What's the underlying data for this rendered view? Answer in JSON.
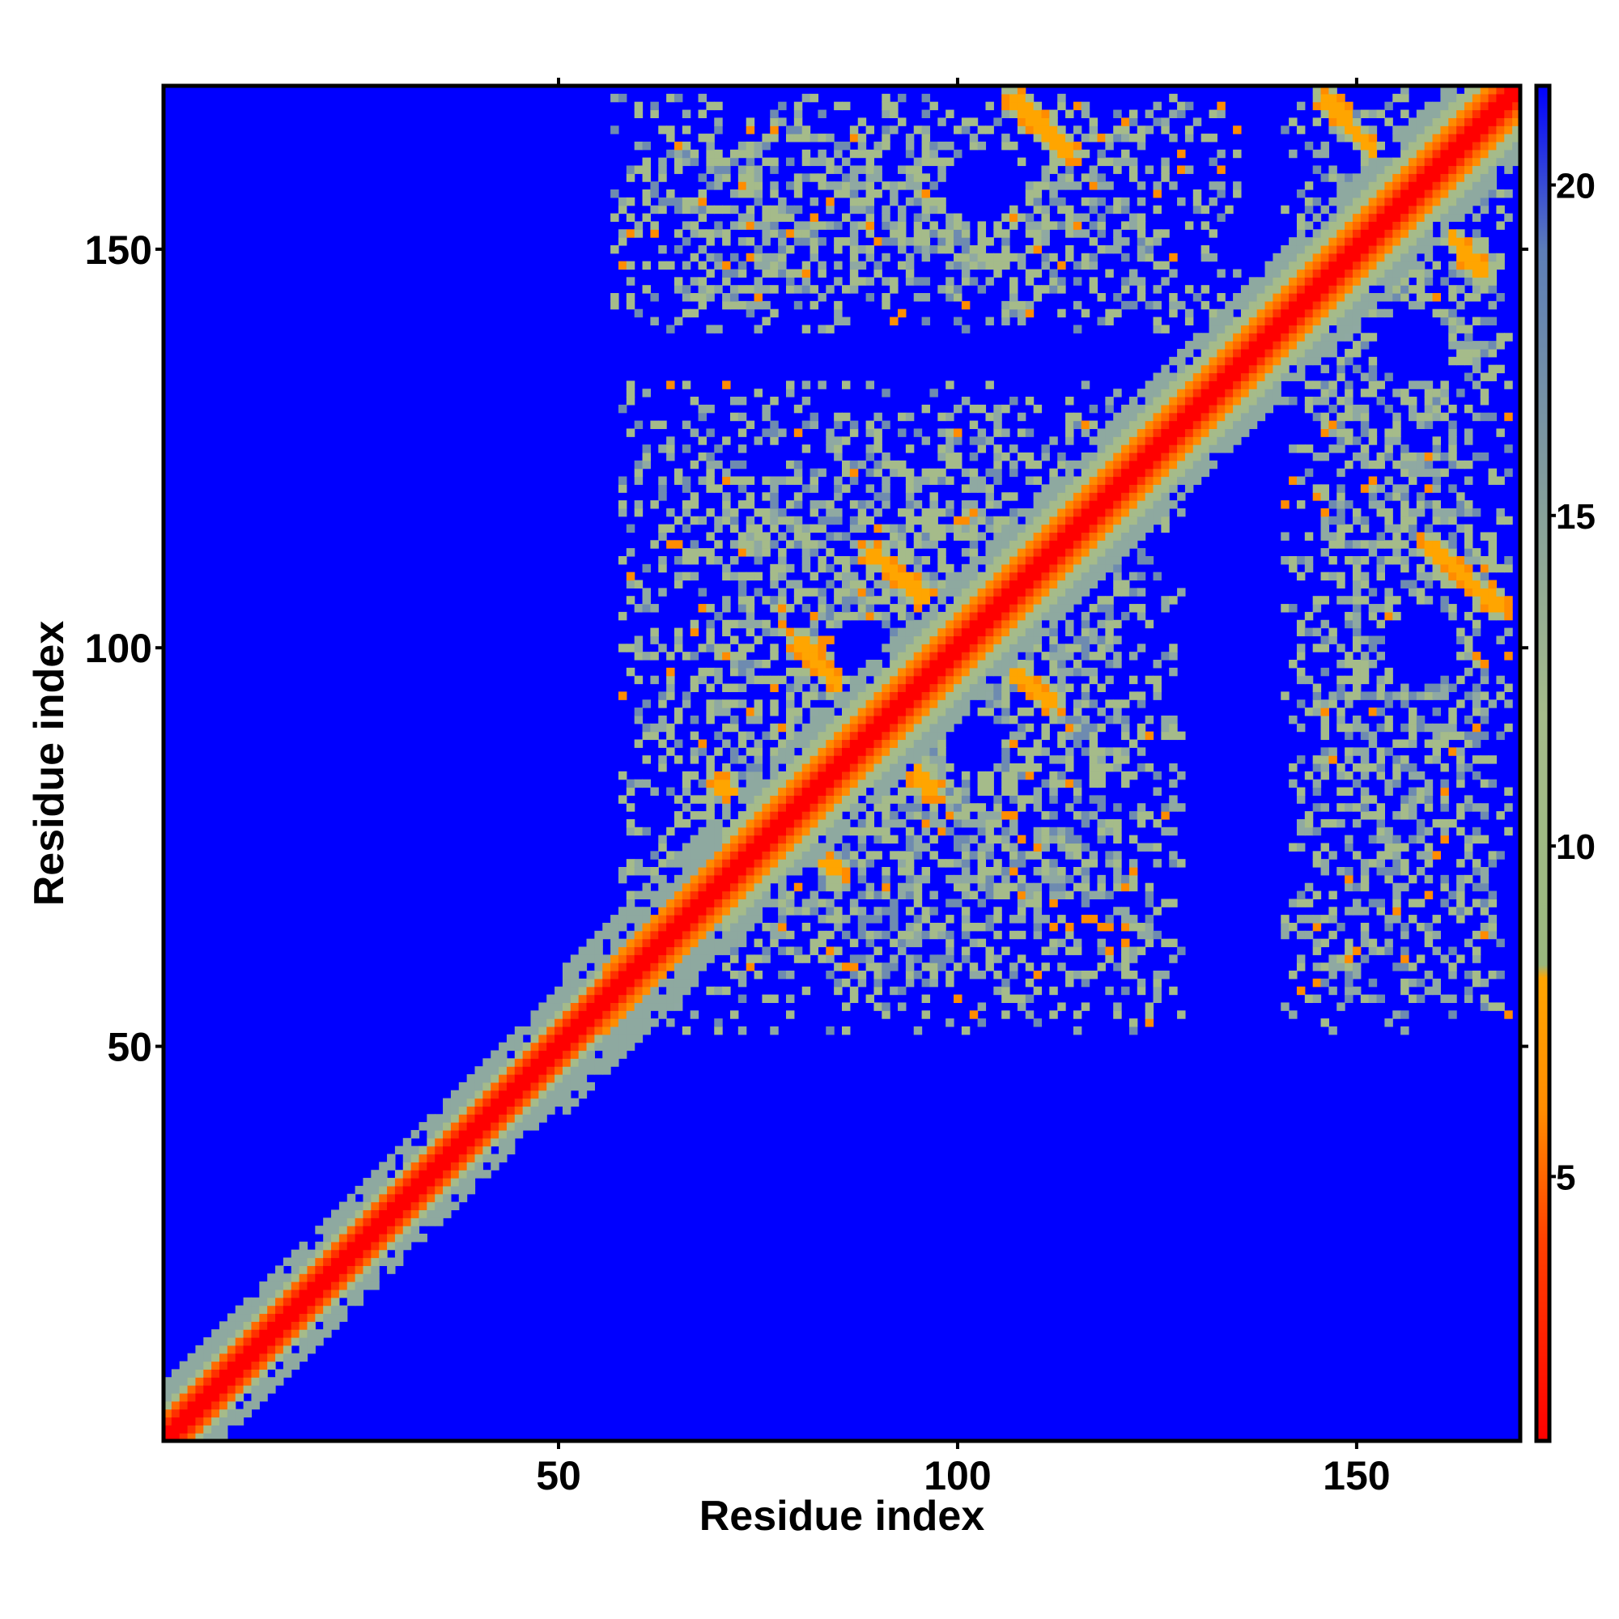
{
  "chart_data": {
    "type": "heatmap",
    "title": "",
    "xlabel": "Residue index",
    "ylabel": "Residue index",
    "n_residues": 170,
    "xlim": [
      1,
      170
    ],
    "ylim": [
      1,
      170
    ],
    "x_ticks": [
      50,
      100,
      150
    ],
    "y_ticks": [
      50,
      100,
      150
    ],
    "colorbar": {
      "range": [
        1,
        21.5
      ],
      "ticks": [
        5,
        10,
        15,
        20
      ],
      "stops": [
        {
          "value": 1,
          "color": "#ff0000"
        },
        {
          "value": 4,
          "color": "#ff4000"
        },
        {
          "value": 6,
          "color": "#ff8c00"
        },
        {
          "value": 8,
          "color": "#ffa500"
        },
        {
          "value": 8.2,
          "color": "#9ab87e"
        },
        {
          "value": 12,
          "color": "#a5bb8a"
        },
        {
          "value": 16,
          "color": "#7d98a0"
        },
        {
          "value": 19,
          "color": "#5d7eb8"
        },
        {
          "value": 21.5,
          "color": "#0000ff"
        }
      ]
    },
    "background_value": 21.5,
    "colors": {
      "far": "#0000ff",
      "diagonal": "#ff0000",
      "near": "#ffa500",
      "mid": "#a5bb8a"
    },
    "features": {
      "diagonal_band_width": 4,
      "contact_blocks": [
        {
          "x": [
            58,
            128
          ],
          "y": [
            52,
            133
          ],
          "density": 0.62
        },
        {
          "x": [
            57,
            135
          ],
          "y": [
            140,
            169
          ],
          "density": 0.58
        },
        {
          "x": [
            141,
            169
          ],
          "y": [
            52,
            170
          ],
          "density": 0.56
        }
      ],
      "antiparallel_contacts": [
        {
          "x1": 70,
          "y1": 83,
          "x2": 85,
          "y2": 72
        },
        {
          "x1": 80,
          "y1": 101,
          "x2": 97,
          "y2": 82
        },
        {
          "x1": 89,
          "y1": 112,
          "x2": 112,
          "y2": 93
        },
        {
          "x1": 107,
          "y1": 169,
          "x2": 114,
          "y2": 162
        },
        {
          "x1": 146,
          "y1": 169,
          "x2": 166,
          "y2": 147
        },
        {
          "x1": 159,
          "y1": 113,
          "x2": 168,
          "y2": 105
        }
      ],
      "holes": [
        {
          "cx": 88,
          "cy": 100,
          "r": 4
        },
        {
          "cx": 102,
          "cy": 88,
          "r": 4
        },
        {
          "cx": 103,
          "cy": 158,
          "r": 5
        },
        {
          "cx": 158,
          "cy": 100,
          "r": 5
        },
        {
          "cx": 157,
          "cy": 138,
          "r": 5
        }
      ]
    }
  }
}
